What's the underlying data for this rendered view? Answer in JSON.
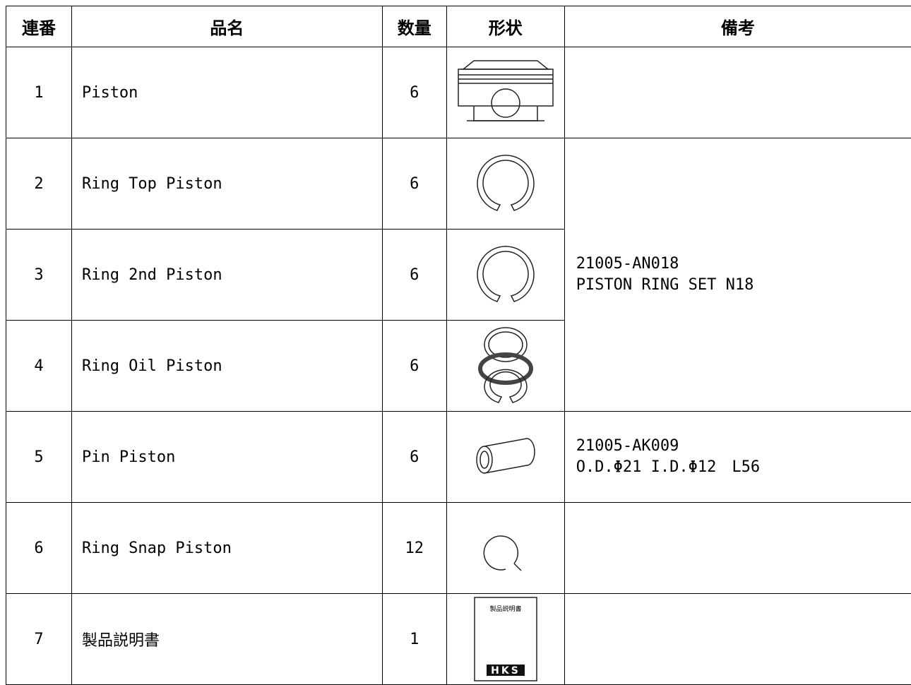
{
  "table": {
    "header": [
      "連番",
      "品名",
      "数量",
      "形状",
      "備考"
    ],
    "rows": [
      {
        "no": "1",
        "name": "Piston",
        "qty": "6"
      },
      {
        "no": "2",
        "name": "Ring Top Piston",
        "qty": "6",
        "remark": [
          "21005-AN018",
          "PISTON RING SET N18"
        ]
      },
      {
        "no": "3",
        "name": "Ring 2nd Piston",
        "qty": "6"
      },
      {
        "no": "4",
        "name": "Ring Oil Piston",
        "qty": "6"
      },
      {
        "no": "5",
        "name": "Pin Piston",
        "qty": "6",
        "remark": [
          "21005-AK009",
          "O.D.Φ21 I.D.Φ12　L56"
        ]
      },
      {
        "no": "6",
        "name": "Ring Snap Piston",
        "qty": "12"
      },
      {
        "no": "7",
        "name": "製品説明書",
        "qty": "1",
        "shape_text": {
          "title": "製品説明書",
          "brand": "HKS"
        }
      }
    ]
  }
}
